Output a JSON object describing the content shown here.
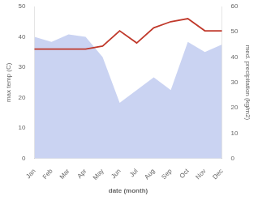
{
  "chart_data": {
    "type": "line",
    "xlabel": "date (month)",
    "ylabel": "max temp (C)",
    "y2label": "med. precipitation (kg/m2)",
    "categories": [
      "Jan",
      "Feb",
      "Mar",
      "Apr",
      "May",
      "Jun",
      "Jul",
      "Aug",
      "Sep",
      "Oct",
      "Nov",
      "Dec"
    ],
    "series": [
      {
        "type": "area",
        "axis": "y2",
        "color": "#b8c4ee",
        "values": [
          48,
          46,
          49,
          48,
          40,
          22,
          27,
          32,
          27,
          46,
          42,
          45
        ]
      },
      {
        "type": "line",
        "color": "#c0392b",
        "values": [
          36,
          36,
          36,
          36,
          37,
          42,
          38,
          43,
          45,
          46,
          42,
          42
        ]
      }
    ],
    "ylim": [
      0,
      50
    ],
    "yticks": [
      0,
      10,
      20,
      30,
      40,
      50
    ],
    "y2lim": [
      0,
      60
    ],
    "y2ticks": [
      0,
      10,
      20,
      30,
      40,
      50,
      60
    ],
    "grid": false
  }
}
